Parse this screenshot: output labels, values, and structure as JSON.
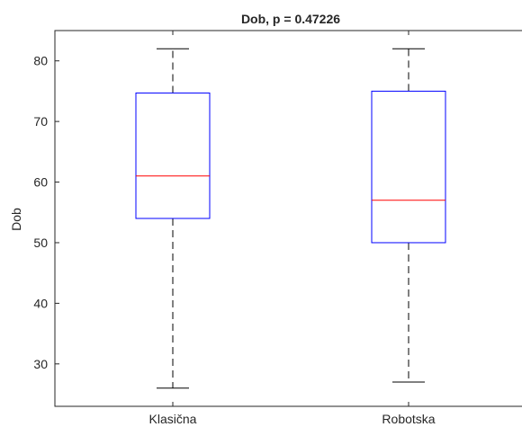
{
  "chart_data": {
    "type": "boxplot",
    "title": "Dob, p = 0.47226",
    "xlabel": "",
    "ylabel": "Dob",
    "ylim": [
      23,
      85
    ],
    "yticks": [
      30,
      40,
      50,
      60,
      70,
      80
    ],
    "grid": false,
    "categories": [
      "Klasična",
      "Robotska"
    ],
    "boxes": [
      {
        "category": "Klasična",
        "whisker_low": 26,
        "q1": 54,
        "median": 61,
        "q3": 74.7,
        "whisker_high": 82
      },
      {
        "category": "Robotska",
        "whisker_low": 27,
        "q1": 50,
        "median": 57,
        "q3": 75,
        "whisker_high": 82
      }
    ],
    "colors": {
      "box": "#0000ff",
      "median": "#ff0000",
      "whisker": "#000000",
      "axis": "#262626"
    }
  }
}
